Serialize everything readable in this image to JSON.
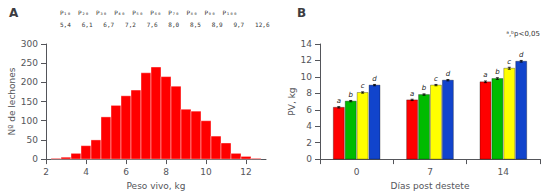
{
  "chart_data": [
    {
      "type": "histogram",
      "title": "A",
      "annotations": [
        "P₁₀  P₂₀  P₃₀  P₄₀  P₅₀  P₆₀  P₇₀  P₈₀  P₉₀  P₁₀₀",
        "5,4   6,1   6,7   7,2   7,6   8,0   8,5   8,9   9,7   12,6"
      ],
      "bins": [
        2.25,
        2.75,
        3.25,
        3.75,
        4.25,
        4.75,
        5.25,
        5.75,
        6.25,
        6.75,
        7.25,
        7.75,
        8.25,
        8.75,
        9.25,
        9.75,
        10.25,
        10.75,
        11.25,
        11.75,
        12.25,
        12.75
      ],
      "values": [
        2,
        5,
        15,
        35,
        50,
        110,
        140,
        165,
        180,
        225,
        240,
        215,
        190,
        130,
        125,
        100,
        60,
        42,
        15,
        7,
        2
      ],
      "color": "#FF0000",
      "xlabel": "Peso vivo, kg",
      "ylabel": "Nº de lechones",
      "xlim": [
        2,
        13
      ],
      "ylim": [
        0,
        300
      ],
      "xticks": [
        2,
        4,
        6,
        8,
        10,
        12
      ],
      "yticks": [
        0,
        50,
        100,
        150,
        200,
        250,
        300
      ],
      "grid": false
    },
    {
      "type": "bar",
      "title": "B",
      "annotations": [
        "ᵃ,ᵇp<0,05"
      ],
      "categories": [
        "0",
        "7",
        "14"
      ],
      "series": [
        {
          "color": "#FF0000",
          "values": [
            6.3,
            7.2,
            9.4
          ],
          "errors": [
            0.08,
            0.08,
            0.1
          ],
          "letters": [
            "a",
            "a",
            "a"
          ]
        },
        {
          "color": "#00BB00",
          "values": [
            7.05,
            7.85,
            9.8
          ],
          "errors": [
            0.08,
            0.08,
            0.1
          ],
          "letters": [
            "b",
            "b",
            "b"
          ]
        },
        {
          "color": "#FFFF00",
          "values": [
            8.1,
            9.0,
            11.05
          ],
          "errors": [
            0.08,
            0.08,
            0.12
          ],
          "letters": [
            "c",
            "c",
            "c"
          ]
        },
        {
          "color": "#1144CC",
          "values": [
            9.0,
            9.6,
            11.9
          ],
          "errors": [
            0.08,
            0.08,
            0.1
          ],
          "letters": [
            "d",
            "d",
            "d"
          ]
        }
      ],
      "xlabel": "Días post destete",
      "ylabel": "PV, kg",
      "ylim": [
        0,
        14
      ],
      "yticks": [
        0,
        2,
        4,
        6,
        8,
        10,
        12,
        14
      ],
      "grid": false
    }
  ]
}
